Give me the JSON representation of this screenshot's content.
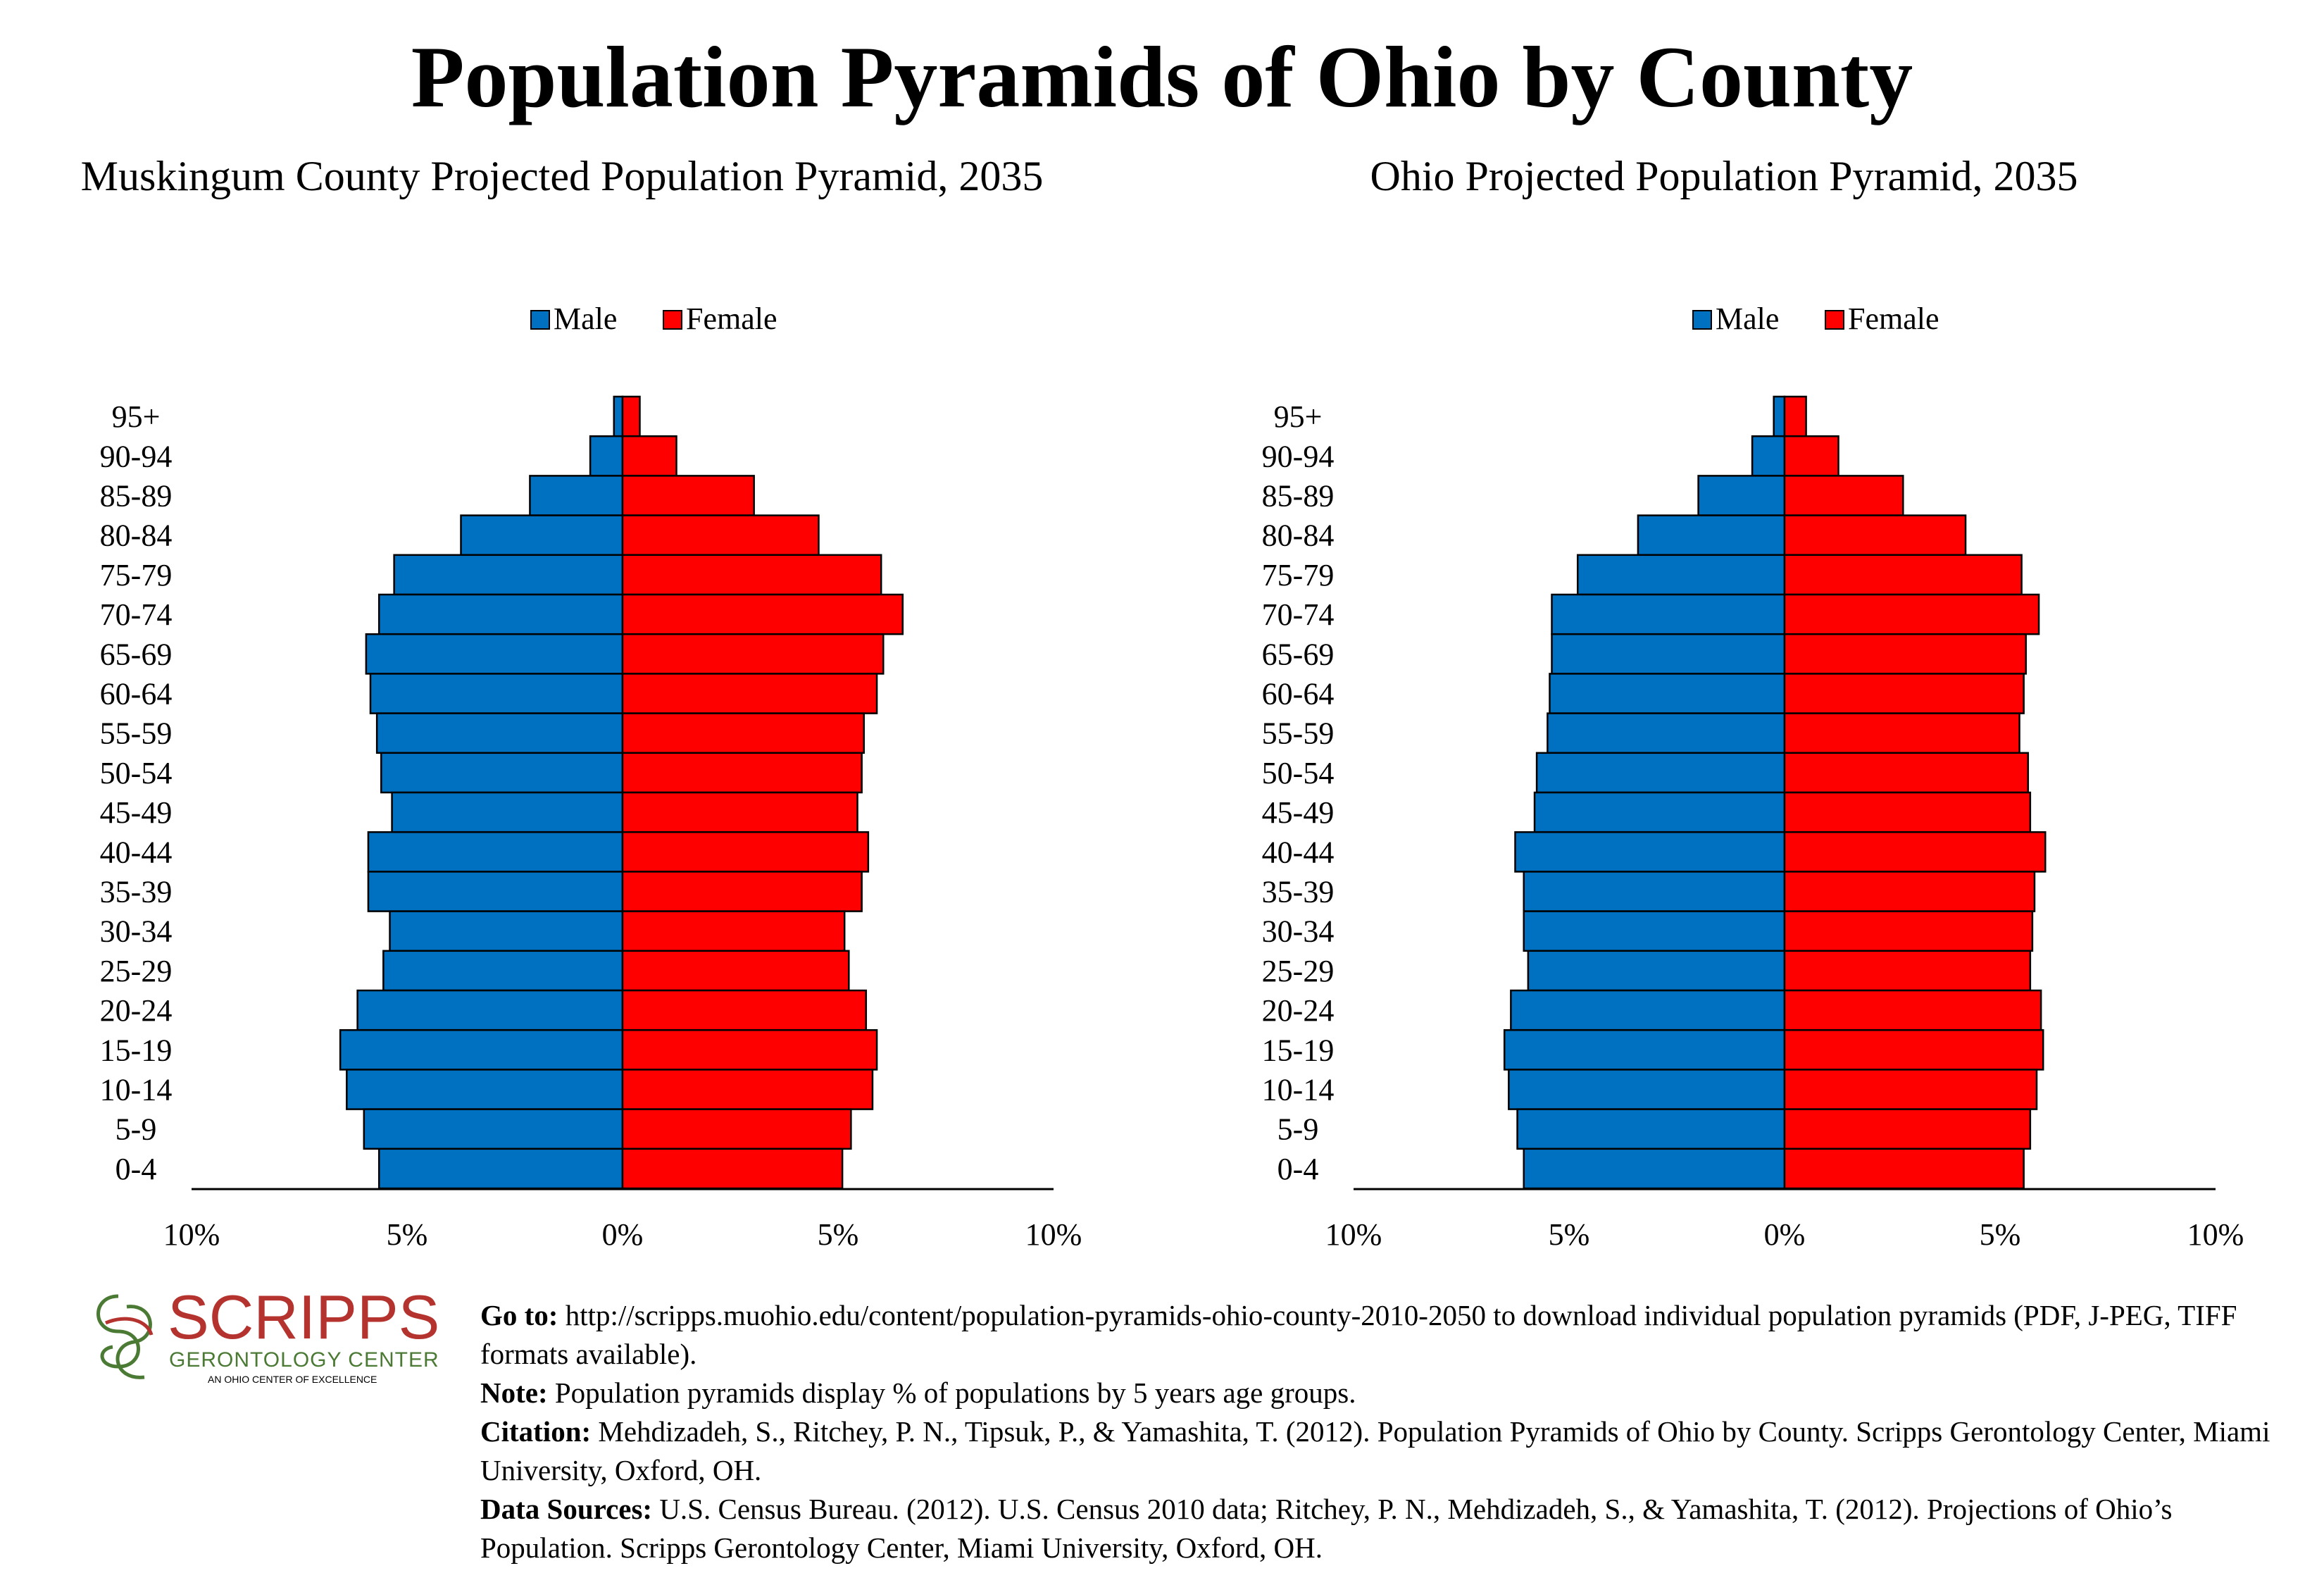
{
  "title": "Population Pyramids of Ohio by County",
  "legend": {
    "male": "Male",
    "female": "Female"
  },
  "colors": {
    "male": "#0070c0",
    "female": "#ff0000",
    "logo": "#b5332e",
    "logo_green": "#4b7a34"
  },
  "chart_data": [
    {
      "type": "bar",
      "title": "Muskingum County Projected Population Pyramid, 2035",
      "categories": [
        "95+",
        "90-94",
        "85-89",
        "80-84",
        "75-79",
        "70-74",
        "65-69",
        "60-64",
        "55-59",
        "50-54",
        "45-49",
        "40-44",
        "35-39",
        "30-34",
        "25-29",
        "20-24",
        "15-19",
        "10-14",
        "5-9",
        "0-4"
      ],
      "series": [
        {
          "name": "Male",
          "values": [
            0.2,
            0.75,
            2.15,
            3.75,
            5.3,
            5.65,
            5.95,
            5.85,
            5.7,
            5.6,
            5.35,
            5.9,
            5.9,
            5.4,
            5.55,
            6.15,
            6.55,
            6.4,
            6.0,
            5.65
          ]
        },
        {
          "name": "Female",
          "values": [
            0.4,
            1.25,
            3.05,
            4.55,
            6.0,
            6.5,
            6.05,
            5.9,
            5.6,
            5.55,
            5.45,
            5.7,
            5.55,
            5.15,
            5.25,
            5.65,
            5.9,
            5.8,
            5.3,
            5.1
          ]
        }
      ],
      "xlim": [
        -10,
        10
      ],
      "xticks": [
        "10%",
        "5%",
        "0%",
        "5%",
        "10%"
      ],
      "legend_position": "top-center",
      "grid": false
    },
    {
      "type": "bar",
      "title": "Ohio Projected Population Pyramid, 2035",
      "categories": [
        "95+",
        "90-94",
        "85-89",
        "80-84",
        "75-79",
        "70-74",
        "65-69",
        "60-64",
        "55-59",
        "50-54",
        "45-49",
        "40-44",
        "35-39",
        "30-34",
        "25-29",
        "20-24",
        "15-19",
        "10-14",
        "5-9",
        "0-4"
      ],
      "series": [
        {
          "name": "Male",
          "values": [
            0.25,
            0.75,
            2.0,
            3.4,
            4.8,
            5.4,
            5.4,
            5.45,
            5.5,
            5.75,
            5.8,
            6.25,
            6.05,
            6.05,
            5.95,
            6.35,
            6.5,
            6.4,
            6.2,
            6.05
          ]
        },
        {
          "name": "Female",
          "values": [
            0.5,
            1.25,
            2.75,
            4.2,
            5.5,
            5.9,
            5.6,
            5.55,
            5.45,
            5.65,
            5.7,
            6.05,
            5.8,
            5.75,
            5.7,
            5.95,
            6.0,
            5.85,
            5.7,
            5.55
          ]
        }
      ],
      "xlim": [
        -10,
        10
      ],
      "xticks": [
        "10%",
        "5%",
        "0%",
        "5%",
        "10%"
      ],
      "legend_position": "top-center",
      "grid": false
    }
  ],
  "logo": {
    "name": "SCRIPPS",
    "subtitle": "GERONTOLOGY CENTER",
    "tagline": "AN OHIO CENTER OF EXCELLENCE"
  },
  "footer": {
    "goto_label": "Go to:",
    "goto_text": "http://scripps.muohio.edu/content/population-pyramids-ohio-county-2010-2050 to download individual population pyramids (PDF, J-PEG, TIFF formats available).",
    "note_label": "Note:",
    "note_text": "Population pyramids display % of populations by 5 years age groups.",
    "citation_label": "Citation:",
    "citation_text": "Mehdizadeh, S., Ritchey, P. N., Tipsuk, P., & Yamashita, T. (2012). Population Pyramids of Ohio by County. Scripps Gerontology Center, Miami University, Oxford, OH.",
    "sources_label": "Data Sources:",
    "sources_text": "U.S. Census Bureau. (2012). U.S. Census 2010 data; Ritchey, P. N., Mehdizadeh, S., & Yamashita, T. (2012). Projections of Ohio’s Population. Scripps Gerontology Center, Miami University, Oxford, OH."
  }
}
